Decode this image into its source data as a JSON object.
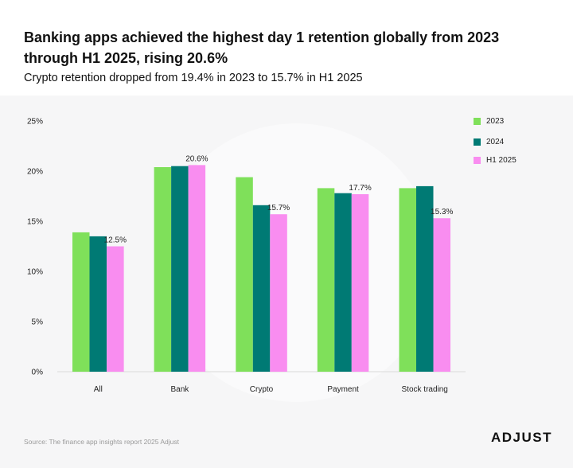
{
  "header": {
    "title": "Banking apps achieved the highest day 1 retention globally from 2023 through H1 2025, rising 20.6%",
    "subtitle": "Crypto retention dropped from 19.4% in 2023 to 15.7% in H1 2025"
  },
  "footer": {
    "source": "Source: The finance app insights report 2025 Adjust",
    "brand": "ADJUST"
  },
  "colors": {
    "c2023": "#7fe05a",
    "c2024": "#007a74",
    "cH12025": "#f98df0",
    "gridline": "#d9d9d9",
    "background": "#f6f6f7"
  },
  "chart_data": {
    "type": "bar",
    "title": "Banking apps achieved the highest day 1 retention globally from 2023 through H1 2025, rising 20.6%",
    "subtitle": "Crypto retention dropped from 19.4% in 2023 to 15.7% in H1 2025",
    "categories": [
      "All",
      "Bank",
      "Crypto",
      "Payment",
      "Stock trading"
    ],
    "series": [
      {
        "name": "2023",
        "values": [
          13.9,
          20.4,
          19.4,
          18.3,
          18.3
        ]
      },
      {
        "name": "2024",
        "values": [
          13.5,
          20.5,
          16.6,
          17.8,
          18.5
        ]
      },
      {
        "name": "H1 2025",
        "values": [
          12.5,
          20.6,
          15.7,
          17.7,
          15.3
        ]
      }
    ],
    "data_labels": [
      "12.5%",
      "20.6%",
      "15.7%",
      "17.7%",
      "15.3%"
    ],
    "y_ticks": [
      "0%",
      "5%",
      "10%",
      "15%",
      "20%",
      "25%"
    ],
    "ylim": [
      0,
      25
    ],
    "xlabel": "",
    "ylabel": "",
    "legend": "top-right",
    "grid": false
  }
}
